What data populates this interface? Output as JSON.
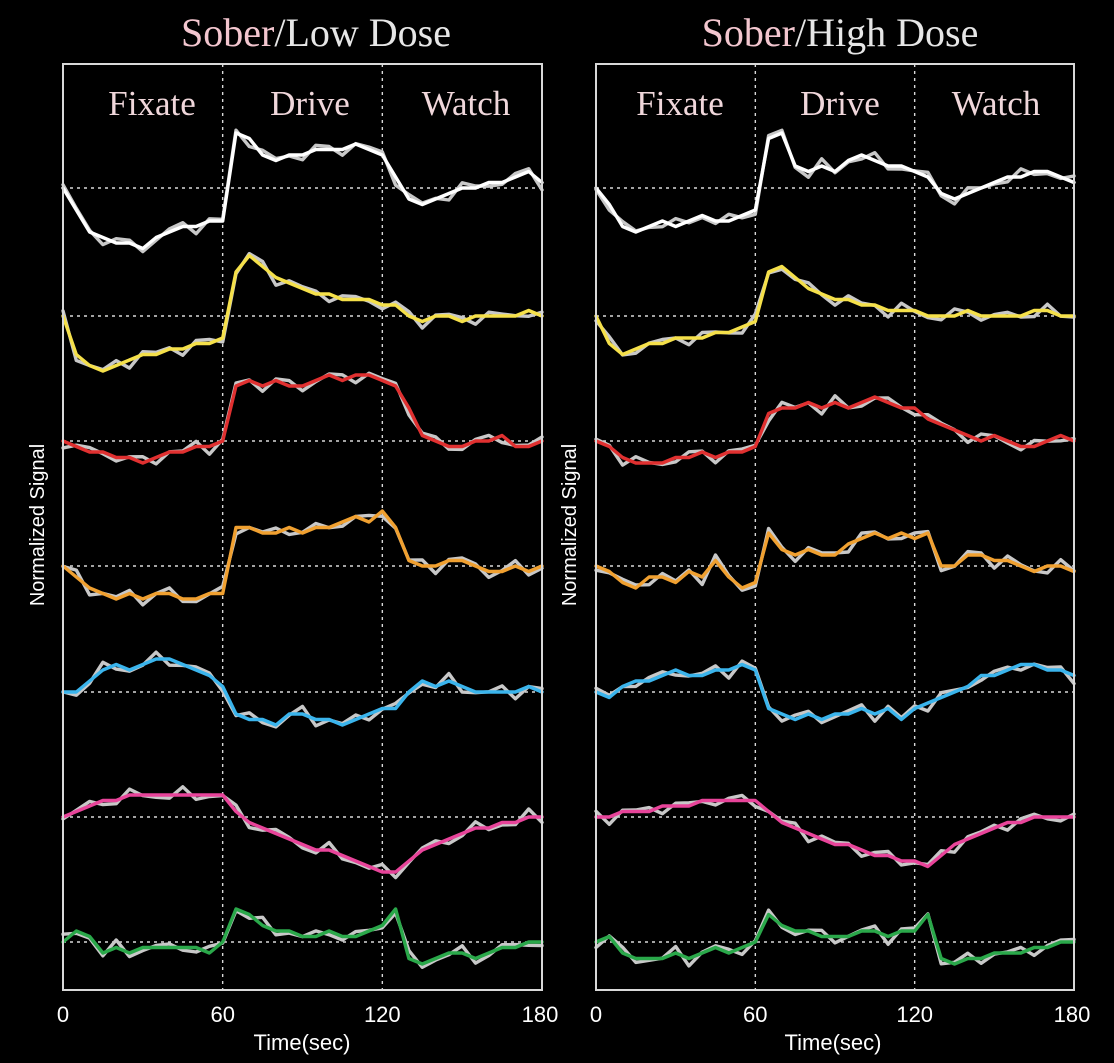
{
  "chart_data": [
    {
      "type": "line",
      "title_sober": "Sober",
      "title_rest": "/Low Dose",
      "phases": [
        "Fixate",
        "Drive",
        "Watch"
      ],
      "xlabel": "Time(sec)",
      "ylabel": "Normalized Signal",
      "xlim": [
        0,
        180
      ],
      "xticks": [
        "0",
        "60",
        "120",
        "180"
      ],
      "x": [
        0,
        5,
        10,
        15,
        20,
        25,
        30,
        35,
        40,
        45,
        50,
        55,
        60,
        65,
        70,
        75,
        80,
        85,
        90,
        95,
        100,
        105,
        110,
        115,
        120,
        125,
        130,
        135,
        140,
        145,
        150,
        155,
        160,
        165,
        170,
        175,
        180
      ],
      "series": [
        {
          "color": "#ffffff",
          "offset": 0,
          "values": [
            0,
            -0.4,
            -0.8,
            -0.9,
            -1.0,
            -1.0,
            -1.1,
            -0.9,
            -0.8,
            -0.7,
            -0.7,
            -0.6,
            -0.6,
            1.0,
            0.9,
            0.6,
            0.5,
            0.6,
            0.6,
            0.7,
            0.7,
            0.7,
            0.8,
            0.7,
            0.6,
            0.2,
            -0.2,
            -0.3,
            -0.2,
            -0.1,
            0.0,
            0.0,
            0.1,
            0.1,
            0.2,
            0.3,
            0.1
          ]
        },
        {
          "color": "#f5e04a",
          "offset": 1,
          "values": [
            0,
            -0.7,
            -0.9,
            -1.0,
            -0.9,
            -0.8,
            -0.7,
            -0.7,
            -0.6,
            -0.6,
            -0.5,
            -0.5,
            -0.4,
            0.8,
            1.1,
            0.9,
            0.7,
            0.6,
            0.5,
            0.4,
            0.4,
            0.3,
            0.3,
            0.3,
            0.2,
            0.2,
            0.0,
            -0.1,
            0.0,
            0.0,
            -0.1,
            0.0,
            0.0,
            0.0,
            0.0,
            0.1,
            0.0
          ]
        },
        {
          "color": "#e03030",
          "offset": 2,
          "values": [
            0,
            -0.1,
            -0.2,
            -0.2,
            -0.3,
            -0.3,
            -0.4,
            -0.3,
            -0.2,
            -0.2,
            -0.1,
            -0.1,
            0.0,
            1.0,
            1.1,
            1.0,
            1.1,
            1.0,
            1.0,
            1.1,
            1.2,
            1.1,
            1.2,
            1.2,
            1.1,
            1.0,
            0.6,
            0.1,
            0.0,
            -0.1,
            -0.1,
            0.0,
            0.0,
            0.1,
            -0.1,
            -0.1,
            0.0
          ]
        },
        {
          "color": "#f0a030",
          "offset": 3,
          "values": [
            0,
            -0.2,
            -0.4,
            -0.5,
            -0.6,
            -0.5,
            -0.6,
            -0.5,
            -0.5,
            -0.6,
            -0.6,
            -0.5,
            -0.5,
            0.7,
            0.7,
            0.6,
            0.6,
            0.7,
            0.6,
            0.7,
            0.7,
            0.8,
            0.9,
            0.8,
            1.0,
            0.7,
            0.1,
            0.0,
            0.0,
            0.1,
            0.1,
            0.0,
            -0.1,
            -0.1,
            0.0,
            -0.1,
            0.0
          ]
        },
        {
          "color": "#3ab4ec",
          "offset": 4,
          "values": [
            0,
            0.0,
            0.2,
            0.4,
            0.5,
            0.4,
            0.5,
            0.6,
            0.6,
            0.5,
            0.4,
            0.3,
            0.1,
            -0.4,
            -0.5,
            -0.5,
            -0.6,
            -0.4,
            -0.4,
            -0.5,
            -0.5,
            -0.6,
            -0.5,
            -0.4,
            -0.3,
            -0.3,
            0.0,
            0.2,
            0.1,
            0.2,
            0.1,
            0.0,
            0.0,
            0.0,
            0.0,
            0.1,
            0.0
          ]
        },
        {
          "color": "#e8449a",
          "offset": 5,
          "values": [
            0,
            0.1,
            0.2,
            0.3,
            0.3,
            0.4,
            0.4,
            0.4,
            0.4,
            0.4,
            0.4,
            0.4,
            0.4,
            0.1,
            -0.1,
            -0.2,
            -0.3,
            -0.4,
            -0.5,
            -0.6,
            -0.6,
            -0.7,
            -0.8,
            -0.9,
            -1.0,
            -1.0,
            -0.8,
            -0.6,
            -0.5,
            -0.4,
            -0.3,
            -0.2,
            -0.2,
            -0.1,
            -0.1,
            0.0,
            0.0
          ]
        },
        {
          "color": "#2aa84a",
          "offset": 6,
          "values": [
            0,
            0.2,
            0.1,
            -0.2,
            -0.1,
            -0.2,
            -0.1,
            -0.1,
            -0.1,
            -0.1,
            -0.1,
            -0.2,
            0.0,
            0.6,
            0.5,
            0.3,
            0.2,
            0.2,
            0.1,
            0.1,
            0.2,
            0.1,
            0.1,
            0.2,
            0.3,
            0.6,
            -0.3,
            -0.4,
            -0.3,
            -0.2,
            -0.2,
            -0.3,
            -0.2,
            -0.1,
            -0.1,
            0.0,
            0.0
          ]
        }
      ]
    },
    {
      "type": "line",
      "title_sober": "Sober",
      "title_rest": "/High Dose",
      "phases": [
        "Fixate",
        "Drive",
        "Watch"
      ],
      "xlabel": "Time(sec)",
      "ylabel": "Normalized Signal",
      "xlim": [
        0,
        180
      ],
      "xticks": [
        "0",
        "60",
        "120",
        "180"
      ],
      "x": [
        0,
        5,
        10,
        15,
        20,
        25,
        30,
        35,
        40,
        45,
        50,
        55,
        60,
        65,
        70,
        75,
        80,
        85,
        90,
        95,
        100,
        105,
        110,
        115,
        120,
        125,
        130,
        135,
        140,
        145,
        150,
        155,
        160,
        165,
        170,
        175,
        180
      ],
      "series": [
        {
          "color": "#ffffff",
          "offset": 0,
          "values": [
            0,
            -0.3,
            -0.7,
            -0.8,
            -0.7,
            -0.6,
            -0.7,
            -0.6,
            -0.5,
            -0.6,
            -0.6,
            -0.5,
            -0.4,
            0.9,
            1.0,
            0.4,
            0.3,
            0.4,
            0.3,
            0.5,
            0.6,
            0.5,
            0.4,
            0.4,
            0.3,
            0.2,
            -0.1,
            -0.2,
            -0.1,
            0.0,
            0.1,
            0.2,
            0.2,
            0.3,
            0.3,
            0.2,
            0.1
          ]
        },
        {
          "color": "#f5e04a",
          "offset": 1,
          "values": [
            0,
            -0.5,
            -0.7,
            -0.6,
            -0.5,
            -0.5,
            -0.4,
            -0.4,
            -0.4,
            -0.3,
            -0.3,
            -0.2,
            -0.1,
            0.8,
            0.9,
            0.7,
            0.5,
            0.4,
            0.3,
            0.3,
            0.2,
            0.2,
            0.1,
            0.1,
            0.1,
            0.0,
            0.0,
            0.0,
            0.1,
            0.0,
            0.0,
            0.0,
            0.0,
            0.1,
            0.1,
            0.0,
            0.0
          ]
        },
        {
          "color": "#e03030",
          "offset": 2,
          "values": [
            0,
            -0.1,
            -0.3,
            -0.4,
            -0.4,
            -0.4,
            -0.3,
            -0.3,
            -0.2,
            -0.3,
            -0.2,
            -0.2,
            -0.1,
            0.5,
            0.6,
            0.6,
            0.7,
            0.6,
            0.7,
            0.6,
            0.7,
            0.8,
            0.7,
            0.6,
            0.6,
            0.4,
            0.3,
            0.2,
            0.1,
            0.0,
            0.1,
            0.0,
            -0.1,
            -0.1,
            0.0,
            0.1,
            0.0
          ]
        },
        {
          "color": "#f0a030",
          "offset": 3,
          "values": [
            0,
            -0.1,
            -0.3,
            -0.4,
            -0.2,
            -0.2,
            -0.3,
            -0.1,
            -0.2,
            0.1,
            -0.2,
            -0.4,
            -0.3,
            0.6,
            0.3,
            0.2,
            0.3,
            0.2,
            0.2,
            0.4,
            0.5,
            0.6,
            0.5,
            0.6,
            0.5,
            0.6,
            0.0,
            0.0,
            0.2,
            0.2,
            0.1,
            0.1,
            0.0,
            -0.1,
            0.0,
            0.0,
            -0.1
          ]
        },
        {
          "color": "#3ab4ec",
          "offset": 4,
          "values": [
            0,
            -0.1,
            0.1,
            0.2,
            0.2,
            0.3,
            0.4,
            0.3,
            0.3,
            0.4,
            0.4,
            0.5,
            0.4,
            -0.3,
            -0.4,
            -0.5,
            -0.4,
            -0.5,
            -0.4,
            -0.4,
            -0.3,
            -0.4,
            -0.3,
            -0.5,
            -0.3,
            -0.2,
            -0.1,
            0.0,
            0.1,
            0.3,
            0.3,
            0.4,
            0.5,
            0.5,
            0.4,
            0.4,
            0.3
          ]
        },
        {
          "color": "#e8449a",
          "offset": 5,
          "values": [
            0,
            0.0,
            0.1,
            0.1,
            0.1,
            0.2,
            0.2,
            0.2,
            0.3,
            0.3,
            0.3,
            0.3,
            0.3,
            0.1,
            -0.1,
            -0.2,
            -0.3,
            -0.4,
            -0.5,
            -0.5,
            -0.6,
            -0.7,
            -0.7,
            -0.8,
            -0.8,
            -0.9,
            -0.7,
            -0.5,
            -0.4,
            -0.3,
            -0.2,
            -0.1,
            -0.1,
            0.0,
            0.0,
            0.0,
            0.0
          ]
        },
        {
          "color": "#2aa84a",
          "offset": 6,
          "values": [
            0,
            0.1,
            -0.2,
            -0.3,
            -0.3,
            -0.3,
            -0.2,
            -0.3,
            -0.2,
            -0.1,
            -0.2,
            -0.1,
            0.0,
            0.5,
            0.3,
            0.2,
            0.2,
            0.1,
            0.1,
            0.1,
            0.2,
            0.2,
            0.1,
            0.2,
            0.2,
            0.5,
            -0.3,
            -0.4,
            -0.3,
            -0.3,
            -0.2,
            -0.2,
            -0.2,
            -0.1,
            -0.1,
            0.0,
            0.0
          ]
        }
      ]
    }
  ]
}
